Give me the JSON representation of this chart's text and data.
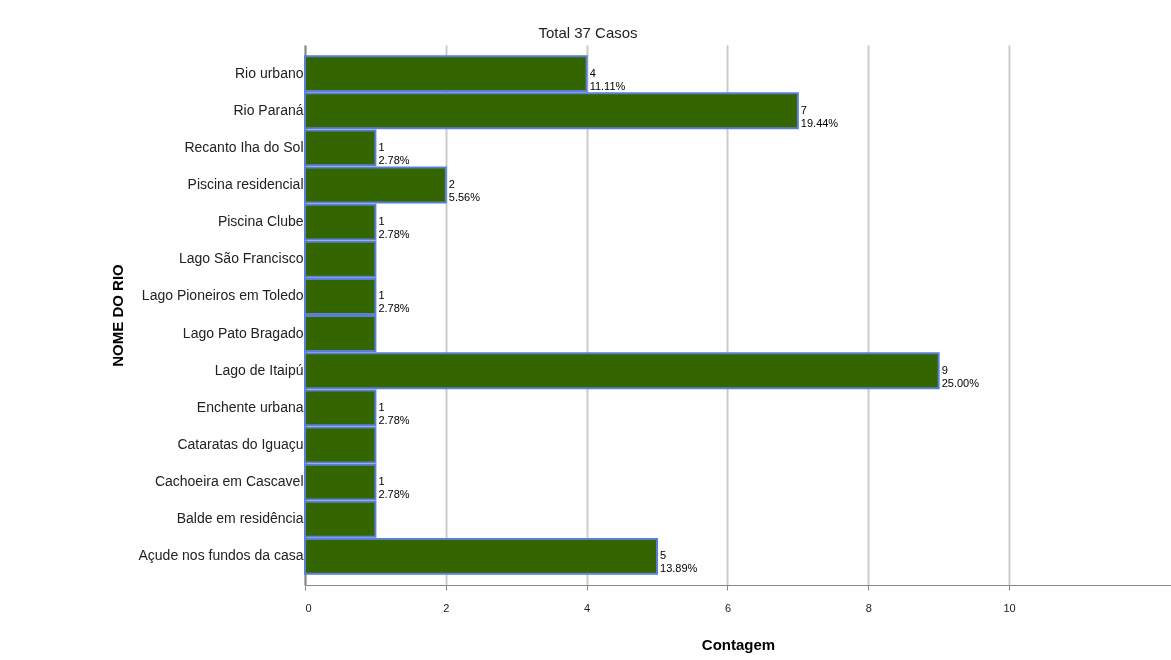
{
  "chart_data": {
    "type": "bar",
    "orientation": "horizontal",
    "title": "Total 37 Casos",
    "xlabel": "Contagem",
    "ylabel": "NOME DO RIO",
    "categories": [
      "Rio urbano",
      "Rio Paraná",
      "Recanto Iha do Sol",
      "Piscina residencial",
      "Piscina Clube",
      "Lago São Francisco",
      "Lago Pioneiros em Toledo",
      "Lago Pato Bragado",
      "Lago de Itaipú",
      "Enchente urbana",
      "Cataratas do Iguaçu",
      "Cachoeira em Cascavel",
      "Balde em residência",
      "Açude nos fundos da casa"
    ],
    "values": [
      4,
      7,
      1,
      2,
      1,
      1,
      1,
      1,
      9,
      1,
      1,
      1,
      1,
      5
    ],
    "value_labels": [
      "4\n11.11%",
      "7\n19.44%",
      "1\n2.78%",
      "2\n5.56%",
      "1\n2.78%",
      null,
      "1\n2.78%",
      null,
      "9\n25.00%",
      "1\n2.78%",
      null,
      "1\n2.78%",
      null,
      "5\n13.89%"
    ],
    "color": "#336600",
    "xlim": [
      0,
      12.3
    ],
    "xticks": [
      0,
      2,
      4,
      6,
      8,
      10
    ],
    "grid": "x"
  }
}
